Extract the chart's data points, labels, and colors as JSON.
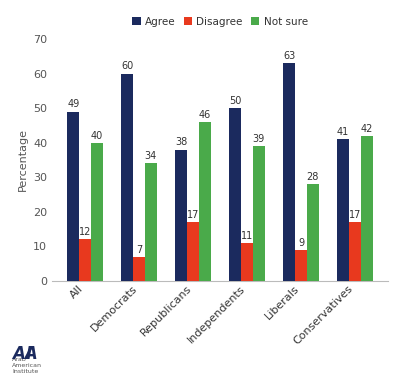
{
  "categories": [
    "All",
    "Democrats",
    "Republicans",
    "Independents",
    "Liberals",
    "Conservatives"
  ],
  "agree": [
    49,
    60,
    38,
    50,
    63,
    41
  ],
  "disagree": [
    12,
    7,
    17,
    11,
    9,
    17
  ],
  "not_sure": [
    40,
    34,
    46,
    39,
    28,
    42
  ],
  "color_agree": "#1b2a5e",
  "color_disagree": "#e8391e",
  "color_not_sure": "#4aaa4a",
  "ylabel": "Percentage",
  "ylim": [
    0,
    70
  ],
  "yticks": [
    0,
    10,
    20,
    30,
    40,
    50,
    60,
    70
  ],
  "legend_labels": [
    "Agree",
    "Disagree",
    "Not sure"
  ],
  "bar_width": 0.22,
  "figsize": [
    4.0,
    3.9
  ],
  "dpi": 100,
  "bg_color": "#ffffff",
  "xtick_color": "#333333",
  "ytick_color": "#555555",
  "label_fontsize": 7.0,
  "axis_label_fontsize": 8,
  "tick_fontsize": 8,
  "legend_fontsize": 7.5
}
